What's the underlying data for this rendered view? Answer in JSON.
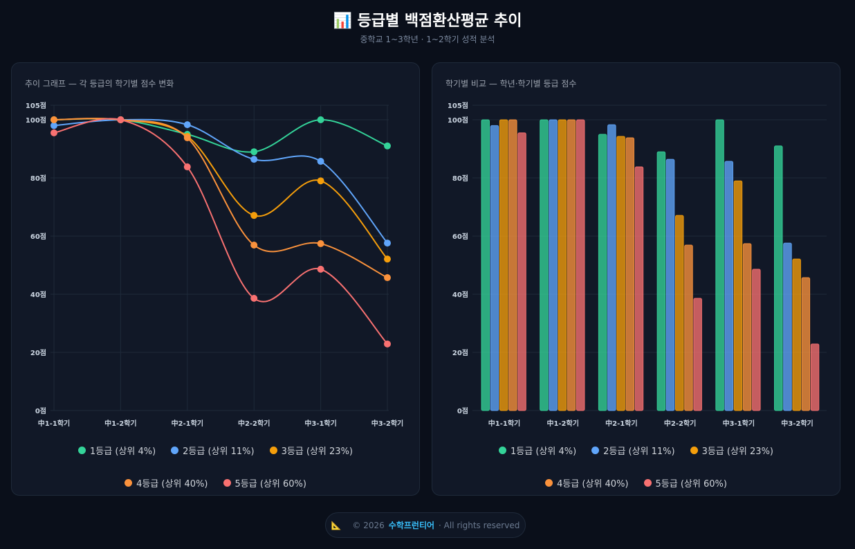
{
  "header": {
    "icon": "bar-chart-icon",
    "title": "등급별 백점환산평균 추이",
    "subtitle": "중학교 1~3학년 · 1~2학기 성적 분석"
  },
  "chart_data": [
    {
      "type": "line",
      "title": "추이 그래프 — 각 등급의 학기별 점수 변화",
      "categories": [
        "中1-1학기",
        "中1-2학기",
        "中2-1학기",
        "中2-2학기",
        "中3-1학기",
        "中3-2학기"
      ],
      "yticks": [
        "0점",
        "20점",
        "40점",
        "60점",
        "80점",
        "100점",
        "105점"
      ],
      "ylim": [
        0,
        105
      ],
      "grid": true,
      "legend": "bottom",
      "series": [
        {
          "name": "1등급 (상위 4%)",
          "color": "#34d399",
          "values": [
            100,
            100,
            95,
            89,
            100,
            91
          ]
        },
        {
          "name": "2등급 (상위 11%)",
          "color": "#60a5fa",
          "values": [
            98,
            100,
            98.3,
            86.4,
            85.7,
            57.6
          ]
        },
        {
          "name": "3등급 (상위 23%)",
          "color": "#f59e0b",
          "values": [
            100,
            100,
            94.3,
            67.1,
            79,
            52.1
          ]
        },
        {
          "name": "4등급 (상위 40%)",
          "color": "#fb923c",
          "values": [
            100,
            100,
            93.8,
            56.9,
            57.4,
            45.7
          ]
        },
        {
          "name": "5등급 (상위 60%)",
          "color": "#f87171",
          "values": [
            95.5,
            100,
            83.8,
            38.6,
            48.6,
            22.9
          ]
        }
      ]
    },
    {
      "type": "bar",
      "title": "학기별 비교 — 학년·학기별 등급 점수",
      "categories": [
        "中1-1학기",
        "中1-2학기",
        "中2-1학기",
        "中2-2학기",
        "中3-1학기",
        "中3-2학기"
      ],
      "yticks": [
        "0점",
        "20점",
        "40점",
        "60점",
        "80점",
        "100점",
        "105점"
      ],
      "ylim": [
        0,
        105
      ],
      "grid": true,
      "legend": "bottom",
      "series": [
        {
          "name": "1등급 (상위 4%)",
          "color": "#34d399",
          "values": [
            100,
            100,
            95,
            89,
            100,
            91
          ]
        },
        {
          "name": "2등급 (상위 11%)",
          "color": "#60a5fa",
          "values": [
            98,
            100,
            98.3,
            86.4,
            85.7,
            57.6
          ]
        },
        {
          "name": "3등급 (상위 23%)",
          "color": "#f59e0b",
          "values": [
            100,
            100,
            94.3,
            67.1,
            79,
            52.1
          ]
        },
        {
          "name": "4등급 (상위 40%)",
          "color": "#fb923c",
          "values": [
            100,
            100,
            93.8,
            56.9,
            57.4,
            45.7
          ]
        },
        {
          "name": "5등급 (상위 60%)",
          "color": "#f87171",
          "values": [
            95.5,
            100,
            83.8,
            38.6,
            48.6,
            22.9
          ]
        }
      ]
    }
  ],
  "footer": {
    "icon": "triangle-ruler-icon",
    "copyright": "© 2026",
    "brand": "수학프런티어",
    "rights": "· All rights reserved"
  }
}
